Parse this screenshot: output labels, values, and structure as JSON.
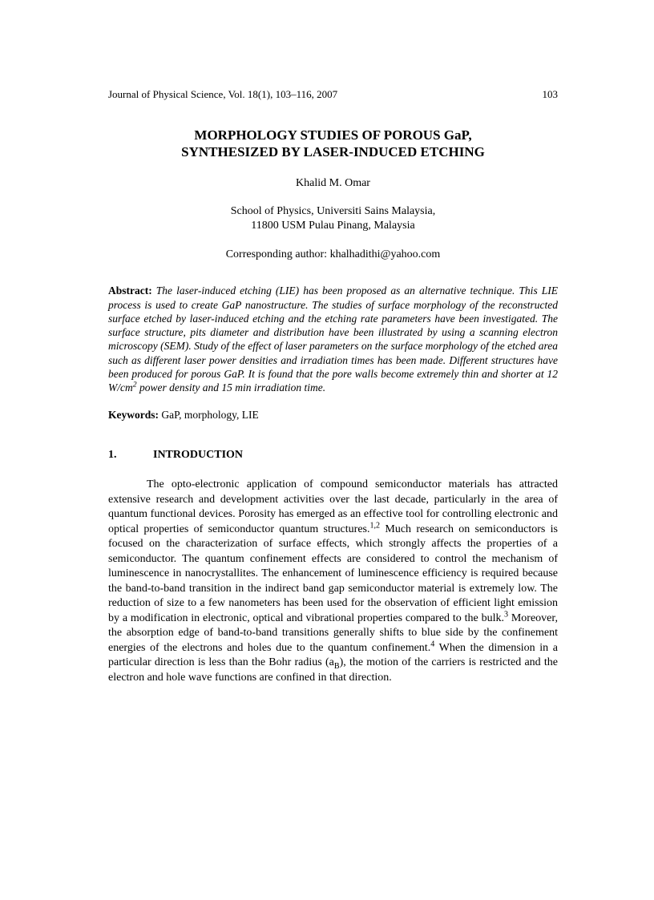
{
  "header": {
    "journal": "Journal of Physical Science, Vol. 18(1), 103–116, 2007",
    "page": "103"
  },
  "title": {
    "line1": "MORPHOLOGY STUDIES OF POROUS GaP,",
    "line2": "SYNTHESIZED BY LASER-INDUCED ETCHING"
  },
  "author": "Khalid M. Omar",
  "affiliation": {
    "line1": "School of Physics, Universiti Sains Malaysia,",
    "line2": "11800 USM Pulau Pinang, Malaysia"
  },
  "corresponding": "Corresponding author: khalhadithi@yahoo.com",
  "abstract": {
    "label": "Abstract:",
    "text_before_sup": "The laser-induced etching (LIE) has been proposed as an alternative technique. This LIE process is used to create GaP nanostructure. The studies of surface morphology of the reconstructed surface etched by laser-induced etching and the etching rate parameters have been investigated. The surface structure, pits diameter and distribution have been illustrated by using a scanning electron microscopy (SEM). Study of the effect of laser parameters on the surface morphology of the etched area such as different laser power densities and irradiation times has been made. Different structures have been produced for porous GaP. It is found that the pore walls become extremely thin and shorter at 12 W/cm",
    "sup": "2",
    "text_after_sup": " power density and 15 min irradiation time."
  },
  "keywords": {
    "label": "Keywords:",
    "text": " GaP, morphology, LIE"
  },
  "section": {
    "num": "1.",
    "title": "INTRODUCTION"
  },
  "paragraph": {
    "p1": "The opto-electronic application of compound semiconductor materials has attracted extensive research and development activities over the last decade, particularly in the area of quantum functional devices. Porosity has emerged as an effective tool for controlling electronic and optical properties of semiconductor quantum structures.",
    "sup1": "1,2",
    "p2": " Much research on semiconductors is focused on the characterization of surface effects, which strongly affects the properties of a semiconductor. The quantum confinement effects are considered to control the mechanism of luminescence in nanocrystallites. The enhancement of luminescence efficiency is required because the band-to-band transition in the indirect band gap semiconductor material is extremely low. The reduction of size to a few nanometers has been used for the observation of efficient light emission by a modification in electronic, optical and vibrational properties compared to the bulk.",
    "sup2": "3",
    "p3": " Moreover, the absorption edge of band-to-band transitions generally shifts to blue side by the confinement energies of the electrons and holes due to the quantum confinement.",
    "sup3": "4",
    "p4": " When the dimension in a particular direction is less than the Bohr radius (a",
    "sub1": "B",
    "p5": "), the motion of the carriers is restricted and the electron and hole wave functions are confined in that direction."
  }
}
